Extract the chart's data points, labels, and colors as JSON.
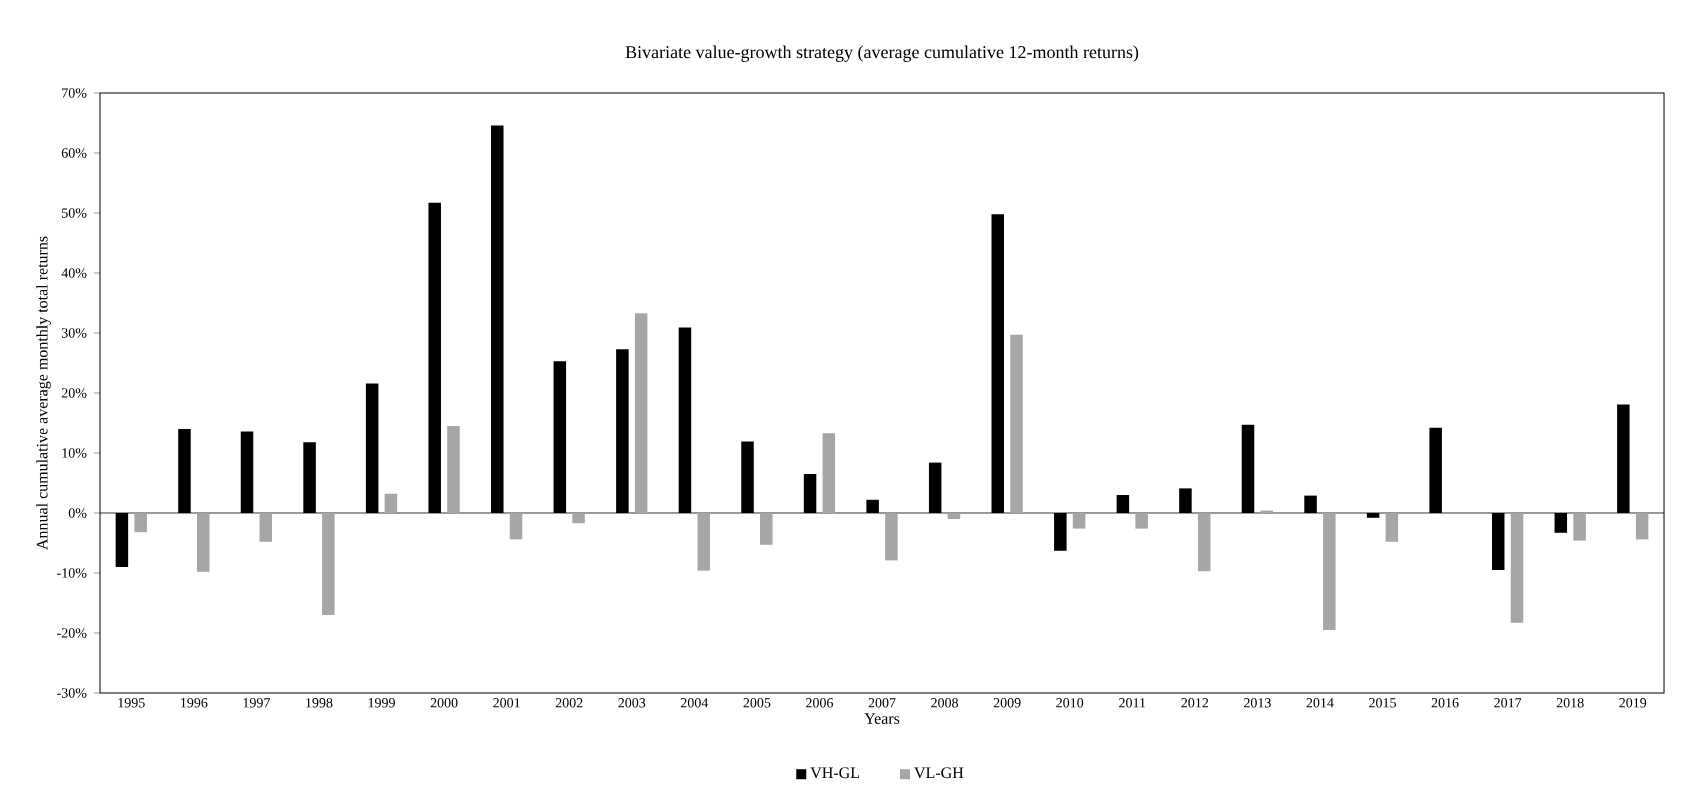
{
  "chart_data": {
    "type": "bar",
    "title": "Bivariate  value-growth strategy (average cumulative 12-month returns)",
    "xlabel": "Years",
    "ylabel": "Annual cumulative average monthly total returns",
    "categories": [
      "1995",
      "1996",
      "1997",
      "1998",
      "1999",
      "2000",
      "2001",
      "2002",
      "2003",
      "2004",
      "2005",
      "2006",
      "2007",
      "2008",
      "2009",
      "2010",
      "2011",
      "2012",
      "2013",
      "2014",
      "2015",
      "2016",
      "2017",
      "2018",
      "2019"
    ],
    "series": [
      {
        "name": "VH-GL",
        "color": "#000000",
        "values": [
          -9.0,
          14.0,
          13.6,
          11.8,
          21.6,
          51.7,
          64.6,
          25.3,
          27.3,
          30.9,
          11.9,
          6.5,
          2.2,
          8.4,
          49.8,
          -6.3,
          3.0,
          4.1,
          14.7,
          2.9,
          -0.8,
          14.2,
          -9.5,
          -3.3,
          18.1
        ]
      },
      {
        "name": "VL-GH",
        "color": "#a6a6a6",
        "values": [
          -3.2,
          -9.8,
          -4.8,
          -17.0,
          3.2,
          14.5,
          -4.4,
          -1.7,
          33.3,
          -9.6,
          -5.3,
          13.3,
          -7.9,
          -1.0,
          29.7,
          -2.6,
          -2.6,
          -9.7,
          0.4,
          -19.5,
          -4.8,
          0,
          -18.3,
          -4.6,
          -4.4
        ]
      }
    ],
    "ylim": [
      -30,
      70
    ],
    "yticks": [
      {
        "value": -30,
        "label": "-30%"
      },
      {
        "value": -20,
        "label": "-20%"
      },
      {
        "value": -10,
        "label": "-10%"
      },
      {
        "value": 0,
        "label": "0%"
      },
      {
        "value": 10,
        "label": "10%"
      },
      {
        "value": 20,
        "label": "20%"
      },
      {
        "value": 30,
        "label": "30%"
      },
      {
        "value": 40,
        "label": "40%"
      },
      {
        "value": 50,
        "label": "50%"
      },
      {
        "value": 60,
        "label": "60%"
      },
      {
        "value": 70,
        "label": "70%"
      }
    ],
    "legend": "bottom"
  }
}
